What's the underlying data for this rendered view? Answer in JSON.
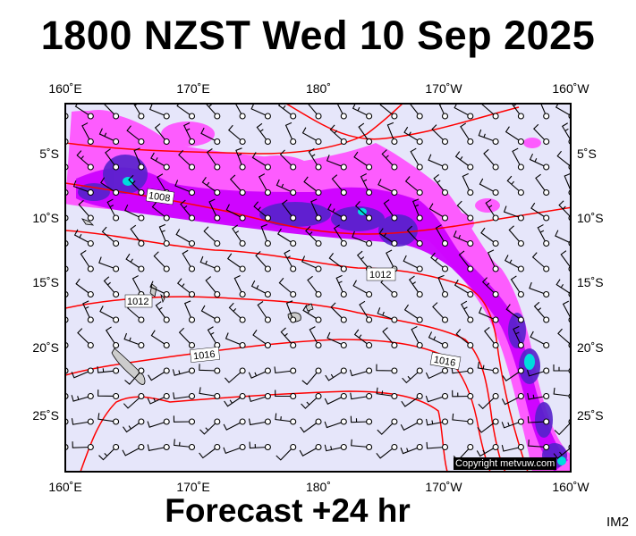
{
  "title": "1800 NZST Wed 10 Sep 2025",
  "subtitle": "Forecast +24 hr",
  "product_tag": "IM2",
  "copyright": "Copyright metvuw.com",
  "lon_labels": [
    "160˚E",
    "170˚E",
    "180˚",
    "170˚W",
    "160˚W"
  ],
  "lat_labels": [
    "5˚S",
    "10˚S",
    "15˚S",
    "20˚S",
    "25˚S"
  ],
  "isobar_labels": [
    "1008",
    "1012",
    "1012",
    "1016",
    "1016"
  ],
  "colors": {
    "ocean": "#e6e6fa",
    "isobar": "#ff0000",
    "precip_light": "#ff55ff",
    "precip_medium": "#cc00ff",
    "precip_heavy": "#5522cc",
    "precip_extreme": "#00dddd"
  }
}
